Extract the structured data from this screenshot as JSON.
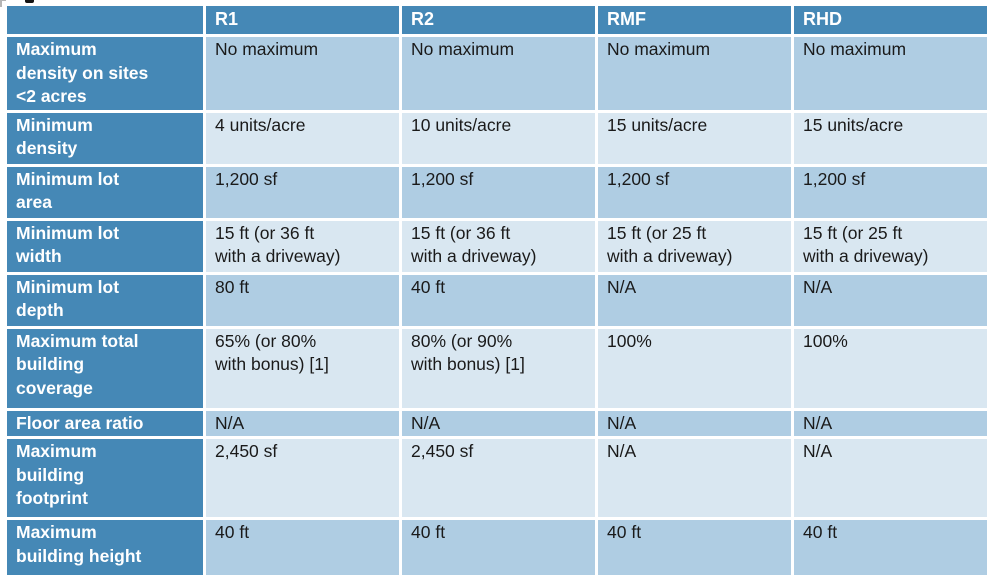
{
  "chart_data": {
    "type": "table",
    "columns": [
      "",
      "R1",
      "R2",
      "RMF",
      "RHD"
    ],
    "rows": [
      {
        "label": "Maximum density on sites <2 acres",
        "values": [
          "No maximum",
          "No maximum",
          "No maximum",
          "No maximum"
        ]
      },
      {
        "label": "Minimum density",
        "values": [
          "4 units/acre",
          "10 units/acre",
          "15 units/acre",
          "15 units/acre"
        ]
      },
      {
        "label": "Minimum lot area",
        "values": [
          "1,200 sf",
          "1,200 sf",
          "1,200 sf",
          "1,200 sf"
        ]
      },
      {
        "label": "Minimum lot width",
        "values": [
          "15 ft (or 36 ft with a driveway)",
          "15 ft (or 36 ft with a driveway)",
          "15 ft (or 25 ft with a driveway)",
          "15 ft (or 25 ft with a driveway)"
        ]
      },
      {
        "label": "Minimum lot depth",
        "values": [
          "80 ft",
          "40 ft",
          "N/A",
          "N/A"
        ]
      },
      {
        "label": "Maximum total building coverage",
        "values": [
          "65% (or 80% with bonus) [1]",
          "80% (or 90% with bonus) [1]",
          "100%",
          "100%"
        ]
      },
      {
        "label": "Floor area ratio",
        "values": [
          "N/A",
          "N/A",
          "N/A",
          "N/A"
        ]
      },
      {
        "label": "Maximum building footprint",
        "values": [
          "2,450 sf",
          "2,450 sf",
          "N/A",
          "N/A"
        ]
      },
      {
        "label": "Maximum building height",
        "values": [
          "40 ft",
          "40 ft",
          "40 ft",
          "40 ft"
        ]
      }
    ]
  },
  "display": {
    "header": [
      "",
      "R1",
      "R2",
      "RMF",
      "RHD"
    ],
    "rows": [
      {
        "label": "Maximum\ndensity on sites\n<2 acres",
        "values": [
          "No maximum",
          "No maximum",
          "No maximum",
          "No maximum"
        ]
      },
      {
        "label": "Minimum\ndensity",
        "values": [
          "4 units/acre",
          "10 units/acre",
          "15 units/acre",
          "15 units/acre"
        ]
      },
      {
        "label": "Minimum lot\narea",
        "values": [
          "1,200 sf",
          "1,200 sf",
          "1,200 sf",
          "1,200 sf"
        ]
      },
      {
        "label": "Minimum lot\nwidth",
        "values": [
          "15 ft (or 36 ft\nwith a driveway)",
          "15 ft (or 36 ft\nwith a driveway)",
          "15 ft (or 25 ft\nwith a driveway)",
          "15 ft (or 25 ft\nwith a driveway)"
        ]
      },
      {
        "label": "Minimum lot\ndepth",
        "values": [
          "80 ft",
          "40 ft",
          "N/A",
          "N/A"
        ]
      },
      {
        "label": "Maximum total\nbuilding\ncoverage",
        "values": [
          "65% (or 80%\nwith bonus) [1]",
          "80% (or 90%\nwith bonus) [1]",
          "100%",
          "100%"
        ]
      },
      {
        "label": "Floor area ratio",
        "values": [
          "N/A",
          "N/A",
          "N/A",
          "N/A"
        ]
      },
      {
        "label": "Maximum\nbuilding\nfootprint",
        "values": [
          "2,450 sf",
          "2,450 sf",
          "N/A",
          "N/A"
        ]
      },
      {
        "label": "Maximum\nbuilding height",
        "values": [
          "40 ft",
          "40 ft",
          "40 ft",
          "40 ft"
        ]
      }
    ]
  },
  "colors": {
    "header_bg": "#4588B6",
    "row_label_bg": "#4588B6",
    "stripe_dark": "#AFCDE3",
    "stripe_light": "#D9E7F1",
    "grid_lines": "#FFFFFF",
    "header_text": "#FFFFFF",
    "cell_text": "#1A1A1A"
  }
}
